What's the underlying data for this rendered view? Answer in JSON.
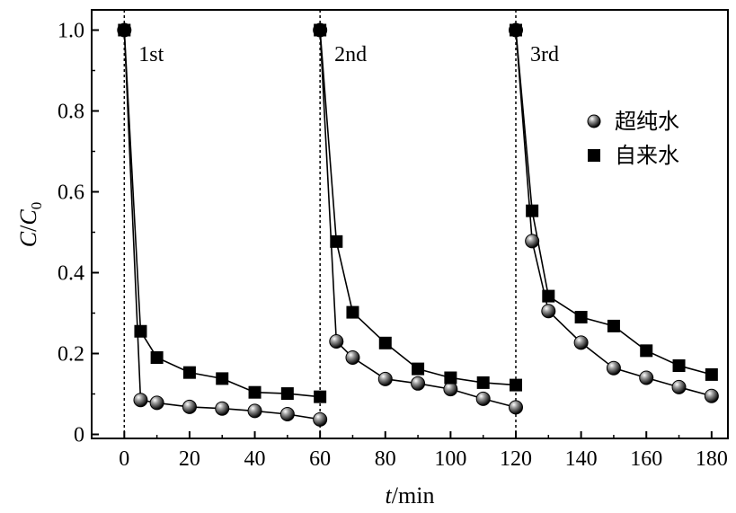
{
  "chart_data": {
    "type": "line",
    "xlabel_var": "t",
    "xlabel_unit": "/min",
    "ylabel_var": "C",
    "ylabel_sep": "/",
    "ylabel_sub_var": "C",
    "ylabel_sub": "0",
    "xlim": [
      -10,
      185
    ],
    "ylim": [
      -0.01,
      1.05
    ],
    "xticks": [
      0,
      20,
      40,
      60,
      80,
      100,
      120,
      140,
      160,
      180
    ],
    "yticks": [
      0,
      0.2,
      0.4,
      0.6,
      0.8,
      1.0
    ],
    "ytick_labels": [
      "0",
      "0.2",
      "0.4",
      "0.6",
      "0.8",
      "1.0"
    ],
    "cycle_lines": [
      0,
      60,
      120
    ],
    "cycle_labels": [
      {
        "text": "1st",
        "x": 0
      },
      {
        "text": "2nd",
        "x": 60
      },
      {
        "text": "3rd",
        "x": 120
      }
    ],
    "legend_position": "right",
    "series": [
      {
        "name": "超纯水",
        "marker": "sphere",
        "segments": [
          [
            [
              0,
              1.0
            ],
            [
              5,
              0.085
            ],
            [
              10,
              0.078
            ],
            [
              20,
              0.068
            ],
            [
              30,
              0.064
            ],
            [
              40,
              0.058
            ],
            [
              50,
              0.05
            ],
            [
              60,
              0.037
            ]
          ],
          [
            [
              60,
              1.0
            ],
            [
              65,
              0.23
            ],
            [
              70,
              0.19
            ],
            [
              80,
              0.137
            ],
            [
              90,
              0.126
            ],
            [
              100,
              0.112
            ],
            [
              110,
              0.088
            ],
            [
              120,
              0.067
            ]
          ],
          [
            [
              120,
              1.0
            ],
            [
              125,
              0.478
            ],
            [
              130,
              0.305
            ],
            [
              140,
              0.227
            ],
            [
              150,
              0.164
            ],
            [
              160,
              0.14
            ],
            [
              170,
              0.117
            ],
            [
              180,
              0.095
            ]
          ]
        ]
      },
      {
        "name": "自来水",
        "marker": "square",
        "segments": [
          [
            [
              0,
              1.0
            ],
            [
              5,
              0.255
            ],
            [
              10,
              0.19
            ],
            [
              20,
              0.153
            ],
            [
              30,
              0.138
            ],
            [
              40,
              0.104
            ],
            [
              50,
              0.101
            ],
            [
              60,
              0.093
            ]
          ],
          [
            [
              60,
              1.0
            ],
            [
              65,
              0.477
            ],
            [
              70,
              0.302
            ],
            [
              80,
              0.226
            ],
            [
              90,
              0.162
            ],
            [
              100,
              0.14
            ],
            [
              110,
              0.128
            ],
            [
              120,
              0.122
            ]
          ],
          [
            [
              120,
              1.0
            ],
            [
              125,
              0.553
            ],
            [
              130,
              0.342
            ],
            [
              140,
              0.29
            ],
            [
              150,
              0.268
            ],
            [
              160,
              0.207
            ],
            [
              170,
              0.17
            ],
            [
              180,
              0.148
            ]
          ]
        ]
      }
    ]
  }
}
